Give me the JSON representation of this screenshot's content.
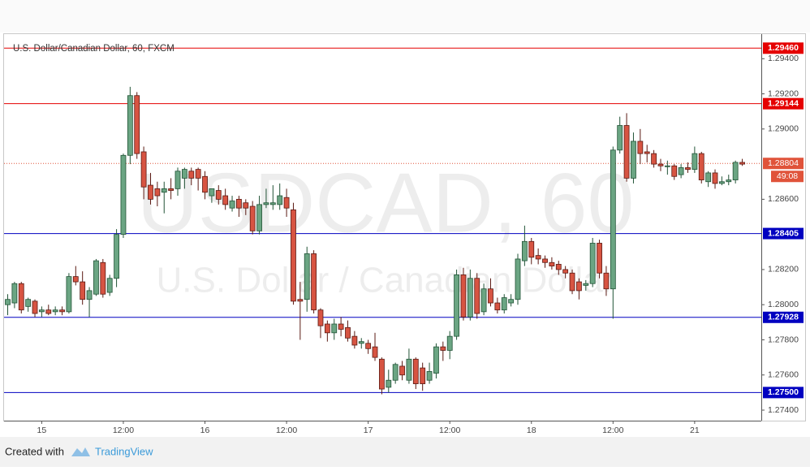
{
  "chart_data": {
    "type": "candlestick",
    "title": "U.S. Dollar/Canadian Dollar, 60, FXCM",
    "watermark": "USDCAD, 60",
    "watermark_subtitle": "U.S. Dollar / Canadian Dollar",
    "categories": [
      null,
      null,
      null,
      null,
      null,
      "15",
      null,
      null,
      null,
      null,
      null,
      null,
      null,
      null,
      null,
      null,
      null,
      "12:00",
      null,
      null,
      null,
      null,
      null,
      null,
      null,
      null,
      null,
      null,
      null,
      "16",
      null,
      null,
      null,
      null,
      null,
      null,
      null,
      null,
      null,
      null,
      null,
      "12:00",
      null,
      null,
      null,
      null,
      null,
      null,
      null,
      null,
      null,
      null,
      null,
      "17",
      null,
      null,
      null,
      null,
      null,
      null,
      null,
      null,
      null,
      null,
      null,
      "12:00",
      null,
      null,
      null,
      null,
      null,
      null,
      null,
      null,
      null,
      null,
      null,
      "18",
      null,
      null,
      null,
      null,
      null,
      null,
      null,
      null,
      null,
      null,
      null,
      "12:00",
      null,
      null,
      null,
      null,
      null,
      null,
      null,
      null,
      null,
      null,
      null,
      "21",
      null,
      null,
      null,
      null,
      null,
      null,
      null
    ],
    "open": [
      1.28,
      1.2801,
      1.2812,
      1.2799,
      1.2802,
      1.2796,
      1.2797,
      1.2796,
      1.2797,
      1.2796,
      1.2816,
      1.2813,
      1.2803,
      1.2806,
      1.2824,
      1.2807,
      1.2815,
      1.284,
      1.2885,
      1.2919,
      1.2887,
      1.2868,
      1.2866,
      1.2864,
      1.2866,
      1.2866,
      1.2872,
      1.2876,
      1.2877,
      1.2873,
      1.2862,
      1.2865,
      1.2862,
      1.2855,
      1.286,
      1.2858,
      1.2856,
      1.2842,
      1.2857,
      1.2857,
      1.2857,
      1.2861,
      1.2854,
      1.2803,
      1.2803,
      1.2829,
      1.2797,
      1.2789,
      1.2784,
      1.2789,
      1.2787,
      1.2782,
      1.2778,
      1.2778,
      1.2776,
      1.2769,
      1.2753,
      1.2757,
      1.2765,
      1.2757,
      1.2769,
      1.2764,
      1.2757,
      1.2761,
      1.2776,
      1.2774,
      1.2782,
      1.2817,
      1.2793,
      1.2815,
      1.2796,
      1.2809,
      1.2801,
      1.2797,
      1.2801,
      1.2803,
      1.2825,
      1.2836,
      1.2828,
      1.2826,
      1.2824,
      1.2823,
      1.282,
      1.2818,
      1.2813,
      1.2811,
      1.2812,
      1.2835,
      1.2818,
      1.2809,
      1.2888,
      1.2902,
      1.2872,
      1.2893,
      1.2887,
      1.2886,
      1.288,
      1.2879,
      1.2879,
      1.2874,
      1.2878,
      1.2877,
      1.2886,
      1.287,
      1.2875,
      1.2869,
      1.287,
      1.2871,
      1.2881
    ],
    "high": [
      1.2806,
      1.2813,
      1.2813,
      1.2804,
      1.2803,
      1.2799,
      1.28,
      1.2799,
      1.2799,
      1.2818,
      1.2822,
      1.2819,
      1.281,
      1.2826,
      1.2826,
      1.2817,
      1.2843,
      1.2886,
      1.2924,
      1.2921,
      1.289,
      1.2875,
      1.287,
      1.287,
      1.2872,
      1.2878,
      1.2878,
      1.2878,
      1.2878,
      1.2876,
      1.2866,
      1.2868,
      1.2866,
      1.2862,
      1.2862,
      1.286,
      1.2859,
      1.2862,
      1.2866,
      1.2868,
      1.2869,
      1.2866,
      1.2858,
      1.2813,
      1.2833,
      1.2831,
      1.2798,
      1.2791,
      1.2792,
      1.2793,
      1.2791,
      1.2785,
      1.2781,
      1.278,
      1.2784,
      1.277,
      1.2763,
      1.2767,
      1.2768,
      1.2775,
      1.277,
      1.2767,
      1.2767,
      1.2778,
      1.2779,
      1.2785,
      1.282,
      1.2821,
      1.282,
      1.2818,
      1.2812,
      1.2815,
      1.2804,
      1.2806,
      1.2806,
      1.2829,
      1.2845,
      1.2838,
      1.2832,
      1.2828,
      1.2827,
      1.2825,
      1.2822,
      1.282,
      1.2815,
      1.2814,
      1.2838,
      1.2837,
      1.2822,
      1.289,
      1.2907,
      1.2909,
      1.2898,
      1.29,
      1.2891,
      1.2888,
      1.2883,
      1.2882,
      1.288,
      1.288,
      1.2881,
      1.289,
      1.2887,
      1.2876,
      1.2877,
      1.2873,
      1.2874,
      1.2882,
      1.2883
    ],
    "low": [
      1.2794,
      1.2798,
      1.2795,
      1.2796,
      1.2793,
      1.2793,
      1.2794,
      1.2794,
      1.2794,
      1.2795,
      1.2811,
      1.28,
      1.2793,
      1.2805,
      1.2804,
      1.2805,
      1.281,
      1.2838,
      1.288,
      1.2883,
      1.286,
      1.2857,
      1.2856,
      1.2852,
      1.286,
      1.2862,
      1.2866,
      1.2868,
      1.2865,
      1.286,
      1.2858,
      1.2857,
      1.2854,
      1.2853,
      1.285,
      1.2851,
      1.284,
      1.284,
      1.2855,
      1.2854,
      1.2854,
      1.285,
      1.28,
      1.278,
      1.2796,
      1.2795,
      1.2781,
      1.2779,
      1.278,
      1.2782,
      1.2779,
      1.2775,
      1.2775,
      1.2772,
      1.2768,
      1.2749,
      1.275,
      1.2755,
      1.2757,
      1.2755,
      1.2752,
      1.2751,
      1.2755,
      1.2758,
      1.2768,
      1.2769,
      1.278,
      1.2791,
      1.2791,
      1.2792,
      1.2794,
      1.2799,
      1.2795,
      1.2795,
      1.2799,
      1.28,
      1.2822,
      1.2823,
      1.2823,
      1.2821,
      1.282,
      1.2817,
      1.2815,
      1.2806,
      1.2803,
      1.2808,
      1.281,
      1.2815,
      1.2805,
      1.2792,
      1.2886,
      1.287,
      1.2869,
      1.288,
      1.2881,
      1.2878,
      1.2876,
      1.2874,
      1.2871,
      1.2872,
      1.2875,
      1.2875,
      1.2869,
      1.2867,
      1.2866,
      1.2868,
      1.2868,
      1.2869,
      1.2879
    ],
    "close": [
      1.2803,
      1.2812,
      1.2797,
      1.2803,
      1.2795,
      1.2797,
      1.2795,
      1.2797,
      1.2796,
      1.2816,
      1.2813,
      1.2803,
      1.2808,
      1.2825,
      1.2806,
      1.2815,
      1.284,
      1.2885,
      1.2919,
      1.2886,
      1.2867,
      1.286,
      1.2862,
      1.2866,
      1.2865,
      1.2876,
      1.2877,
      1.2872,
      1.2872,
      1.2864,
      1.2866,
      1.286,
      1.2857,
      1.2859,
      1.2855,
      1.2855,
      1.2842,
      1.2857,
      1.2858,
      1.2858,
      1.2862,
      1.2855,
      1.2802,
      1.2802,
      1.2829,
      1.2797,
      1.2788,
      1.2784,
      1.2789,
      1.2786,
      1.2781,
      1.2777,
      1.2779,
      1.2775,
      1.277,
      1.2752,
      1.2757,
      1.2766,
      1.276,
      1.2769,
      1.2755,
      1.2755,
      1.2762,
      1.2776,
      1.2774,
      1.2782,
      1.2817,
      1.2793,
      1.2815,
      1.2795,
      1.2809,
      1.2801,
      1.2797,
      1.2804,
      1.2803,
      1.2826,
      1.2836,
      1.2827,
      1.2826,
      1.2824,
      1.2822,
      1.282,
      1.2818,
      1.2808,
      1.2808,
      1.2812,
      1.2835,
      1.2818,
      1.2809,
      1.2888,
      1.2902,
      1.2872,
      1.2893,
      1.2886,
      1.2886,
      1.288,
      1.2879,
      1.2879,
      1.2873,
      1.2878,
      1.2877,
      1.2886,
      1.2871,
      1.2875,
      1.2869,
      1.287,
      1.2871,
      1.2881,
      1.288
    ],
    "up_color": "#6ba583",
    "down_color": "#d75442",
    "up_wick": "#225437",
    "down_wick": "#5b1a13",
    "ylim": [
      1.2734,
      1.2954
    ],
    "yticks": [
      {
        "value": 1.274,
        "label": "1.27400"
      },
      {
        "value": 1.276,
        "label": "1.27600"
      },
      {
        "value": 1.278,
        "label": "1.27800"
      },
      {
        "value": 1.28,
        "label": "1.28000"
      },
      {
        "value": 1.282,
        "label": "1.28200"
      },
      {
        "value": 1.286,
        "label": "1.28600"
      },
      {
        "value": 1.29,
        "label": "1.29000"
      },
      {
        "value": 1.292,
        "label": "1.29200"
      },
      {
        "value": 1.294,
        "label": "1.29400"
      }
    ],
    "levels": [
      {
        "value": 1.2946,
        "label": "1.29460",
        "color": "#e50000"
      },
      {
        "value": 1.29144,
        "label": "1.29144",
        "color": "#e50000"
      },
      {
        "value": 1.28405,
        "label": "1.28405",
        "color": "#0000c0"
      },
      {
        "value": 1.27928,
        "label": "1.27928",
        "color": "#0000c0"
      },
      {
        "value": 1.275,
        "label": "1.27500",
        "color": "#0000c0"
      }
    ],
    "last_price": {
      "value": 1.28804,
      "label": "1.28804",
      "countdown": "49:08",
      "color": "#e0533a"
    }
  },
  "footer": {
    "created_with": "Created with",
    "brand": "TradingView"
  }
}
